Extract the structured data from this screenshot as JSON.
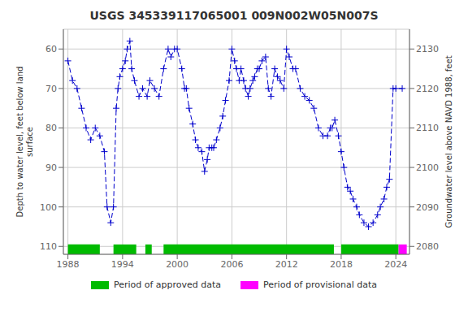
{
  "chart_data": {
    "type": "line",
    "title": "USGS 345339117065001 009N002W05N007S",
    "ylabel": "Depth to water level, feet below land\nsurface",
    "y2label": "Groundwater level above NAVD 1988, feet",
    "xlim": [
      1987.5,
      2025.5
    ],
    "xticks": [
      1988,
      1994,
      2000,
      2006,
      2012,
      2018,
      2024
    ],
    "ylim": [
      112,
      55
    ],
    "yticks": [
      60,
      70,
      80,
      90,
      100,
      110
    ],
    "y2lim": [
      2078,
      2135
    ],
    "y2ticks": [
      2080,
      2090,
      2100,
      2110,
      2120,
      2130
    ],
    "grid": true,
    "color": "#0000cc",
    "marker": "+",
    "line_style": "dashed",
    "x": [
      1988.0,
      1988.5,
      1989.0,
      1989.5,
      1990.0,
      1990.5,
      1991.0,
      1991.5,
      1992.0,
      1992.3,
      1992.7,
      1993.0,
      1993.3,
      1993.5,
      1993.7,
      1994.0,
      1994.3,
      1994.5,
      1994.8,
      1995.0,
      1995.3,
      1995.8,
      1996.2,
      1996.7,
      1997.0,
      1997.5,
      1998.0,
      1998.5,
      1999.0,
      1999.3,
      1999.7,
      2000.0,
      2000.5,
      2000.8,
      2001.0,
      2001.3,
      2001.7,
      2002.0,
      2002.3,
      2002.7,
      2003.0,
      2003.3,
      2003.5,
      2003.8,
      2004.0,
      2004.3,
      2004.7,
      2005.0,
      2005.3,
      2005.7,
      2006.0,
      2006.3,
      2006.5,
      2006.8,
      2007.0,
      2007.3,
      2007.5,
      2007.8,
      2008.0,
      2008.3,
      2008.5,
      2008.8,
      2009.0,
      2009.3,
      2009.7,
      2010.0,
      2010.3,
      2010.7,
      2011.0,
      2011.3,
      2011.7,
      2012.0,
      2012.3,
      2012.7,
      2013.0,
      2013.5,
      2014.0,
      2014.5,
      2015.0,
      2015.5,
      2016.0,
      2016.5,
      2016.8,
      2017.0,
      2017.3,
      2017.7,
      2018.0,
      2018.3,
      2018.7,
      2019.0,
      2019.3,
      2019.7,
      2020.0,
      2020.5,
      2021.0,
      2021.5,
      2022.0,
      2022.3,
      2022.7,
      2023.0,
      2023.3,
      2023.7,
      2024.0,
      2024.7
    ],
    "values": [
      63,
      68,
      70,
      75,
      80,
      83,
      80,
      82,
      86,
      100,
      104,
      100,
      75,
      70,
      67,
      65,
      63,
      60,
      58,
      65,
      68,
      72,
      70,
      72,
      68,
      70,
      72,
      65,
      60,
      62,
      60,
      60,
      65,
      70,
      70,
      75,
      79,
      83,
      85,
      86,
      91,
      88,
      85,
      85,
      85,
      83,
      80,
      77,
      73,
      68,
      60,
      63,
      65,
      68,
      65,
      68,
      70,
      72,
      70,
      68,
      67,
      65,
      65,
      63,
      62,
      70,
      72,
      65,
      67,
      68,
      70,
      60,
      62,
      65,
      65,
      70,
      72,
      73,
      75,
      80,
      82,
      82,
      80,
      80,
      78,
      82,
      86,
      90,
      95,
      96,
      98,
      100,
      102,
      104,
      105,
      104,
      102,
      100,
      98,
      95,
      93,
      70,
      70,
      70
    ],
    "periods": [
      {
        "name": "Period of approved data",
        "color": "#00bb00",
        "ranges": [
          [
            1988.0,
            1991.5
          ],
          [
            1993.0,
            1995.5
          ],
          [
            1996.5,
            1997.2
          ],
          [
            1998.5,
            2017.2
          ],
          [
            2018.0,
            2024.3
          ]
        ]
      },
      {
        "name": "Period of provisional data",
        "color": "#ff00ff",
        "ranges": [
          [
            2024.3,
            2025.2
          ]
        ]
      }
    ],
    "period_band": [
      109.5,
      112.0
    ]
  }
}
